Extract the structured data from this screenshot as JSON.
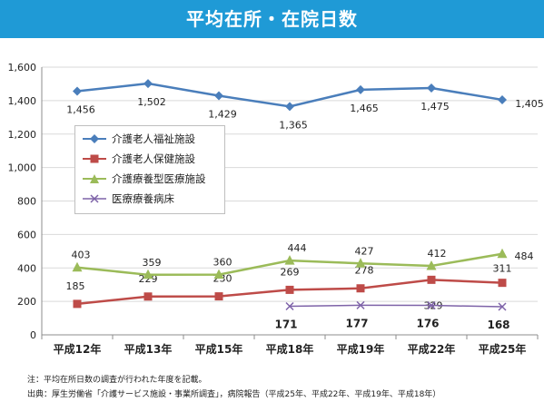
{
  "title": "平均在所・在院日数",
  "notes": {
    "note1": "注：平均在所日数の調査が行われた年度を記載。",
    "note2": "出典：厚生労働省「介護サービス施設・事業所調査」，病院報告（平成25年、平成22年、平成19年、平成18年）"
  },
  "chart_data": {
    "type": "line",
    "categories": [
      "平成12年",
      "平成13年",
      "平成15年",
      "平成18年",
      "平成19年",
      "平成22年",
      "平成25年"
    ],
    "ylim": [
      0,
      1600
    ],
    "yticks": [
      "0",
      "200",
      "400",
      "600",
      "800",
      "1,000",
      "1,200",
      "1,400",
      "1,600"
    ],
    "grid": true,
    "legend_position": "upper-left",
    "series": [
      {
        "name": "介護老人福祉施設",
        "color": "#4a7ebb",
        "marker": "diamond",
        "values": [
          1456,
          1502,
          1429,
          1365,
          1465,
          1475,
          1405
        ],
        "labels": [
          "1,456",
          "1,502",
          "1,429",
          "1,365",
          "1,465",
          "1,475",
          "1,405"
        ]
      },
      {
        "name": "介護老人保健施設",
        "color": "#be4b48",
        "marker": "square",
        "values": [
          185,
          229,
          230,
          269,
          278,
          329,
          311
        ],
        "labels": [
          "185",
          "229",
          "230",
          "269",
          "278",
          "329",
          "311"
        ]
      },
      {
        "name": "介護療養型医療施設",
        "color": "#9bbb59",
        "marker": "triangle",
        "values": [
          403,
          359,
          360,
          444,
          427,
          412,
          484
        ],
        "labels": [
          "403",
          "359",
          "360",
          "444",
          "427",
          "412",
          "484"
        ]
      },
      {
        "name": "医療療養病床",
        "color": "#7e63a8",
        "marker": "x",
        "values": [
          null,
          null,
          null,
          171,
          177,
          176,
          168
        ],
        "labels": [
          "",
          "",
          "",
          "171",
          "177",
          "176",
          "168"
        ]
      }
    ]
  }
}
